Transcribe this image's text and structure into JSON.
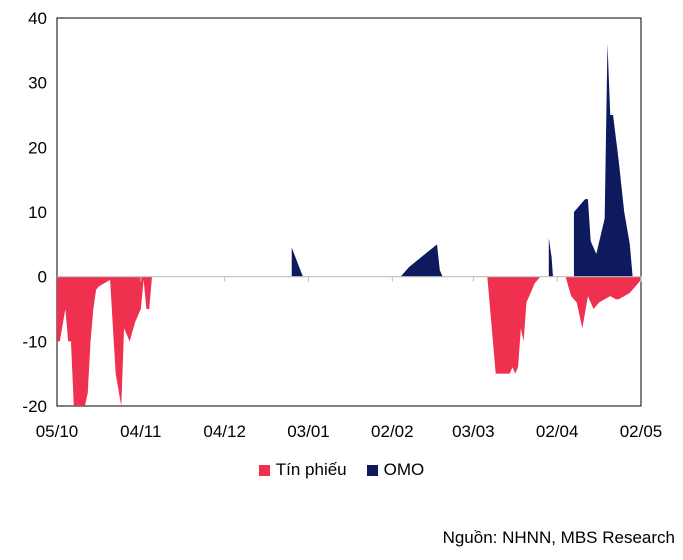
{
  "chart_data": {
    "type": "area",
    "title": "",
    "xlabel": "",
    "ylabel": "",
    "ylim": [
      -20,
      40
    ],
    "yticks": [
      -20,
      -10,
      0,
      10,
      20,
      30,
      40
    ],
    "x_ticks": [
      {
        "label": "05/10",
        "x": 0
      },
      {
        "label": "04/11",
        "x": 30
      },
      {
        "label": "04/12",
        "x": 60
      },
      {
        "label": "03/01",
        "x": 90
      },
      {
        "label": "02/02",
        "x": 120
      },
      {
        "label": "03/03",
        "x": 149
      },
      {
        "label": "02/04",
        "x": 179
      },
      {
        "label": "02/05",
        "x": 209
      }
    ],
    "xlim": [
      0,
      209
    ],
    "series": [
      {
        "name": "Tín phiếu",
        "color": "#f0304f",
        "points": [
          [
            0,
            0
          ],
          [
            0,
            -10
          ],
          [
            1,
            -10
          ],
          [
            3,
            -5
          ],
          [
            4,
            -10
          ],
          [
            5,
            -10
          ],
          [
            6,
            -20
          ],
          [
            10,
            -20
          ],
          [
            11,
            -18
          ],
          [
            12,
            -10
          ],
          [
            13,
            -5
          ],
          [
            14,
            -2
          ],
          [
            15,
            -1.5
          ],
          [
            17,
            -1
          ],
          [
            19,
            -0.5
          ],
          [
            21,
            -15
          ],
          [
            23,
            -20
          ],
          [
            24,
            -8
          ],
          [
            26,
            -10
          ],
          [
            28,
            -7
          ],
          [
            30,
            -5
          ],
          [
            31,
            -0.5
          ],
          [
            32,
            -5
          ],
          [
            33,
            -5
          ],
          [
            34,
            0
          ],
          [
            154,
            0
          ],
          [
            155,
            -5
          ],
          [
            157,
            -15
          ],
          [
            162,
            -15
          ],
          [
            163,
            -14
          ],
          [
            164,
            -15
          ],
          [
            165,
            -14
          ],
          [
            166,
            -8
          ],
          [
            167,
            -10
          ],
          [
            168,
            -4
          ],
          [
            169,
            -3
          ],
          [
            171,
            -1
          ],
          [
            172,
            -0.5
          ],
          [
            173,
            0
          ],
          [
            182,
            0
          ],
          [
            184,
            -3
          ],
          [
            186,
            -4
          ],
          [
            188,
            -8
          ],
          [
            190,
            -3
          ],
          [
            192,
            -5
          ],
          [
            194,
            -4
          ],
          [
            196,
            -3.5
          ],
          [
            198,
            -3
          ],
          [
            200,
            -3.5
          ],
          [
            201,
            -3.5
          ],
          [
            203,
            -3
          ],
          [
            205,
            -2.5
          ],
          [
            206,
            -2
          ],
          [
            209,
            -0.5
          ],
          [
            209,
            0
          ]
        ]
      },
      {
        "name": "OMO",
        "color": "#0d1b5e",
        "points": [
          [
            0,
            0
          ],
          [
            84,
            0
          ],
          [
            84,
            4.5
          ],
          [
            88,
            0
          ],
          [
            123,
            0
          ],
          [
            126,
            1.5
          ],
          [
            136,
            5
          ],
          [
            137,
            1
          ],
          [
            138,
            0
          ],
          [
            176,
            0
          ],
          [
            176,
            6
          ],
          [
            177,
            3
          ],
          [
            177.5,
            0
          ],
          [
            185,
            0
          ],
          [
            185,
            10
          ],
          [
            189,
            12
          ],
          [
            190,
            12
          ],
          [
            191,
            5.5
          ],
          [
            193,
            3.5
          ],
          [
            196,
            9
          ],
          [
            197,
            36
          ],
          [
            198,
            25
          ],
          [
            199,
            25
          ],
          [
            201,
            18
          ],
          [
            203,
            10
          ],
          [
            205,
            5
          ],
          [
            206,
            0
          ],
          [
            209,
            0
          ]
        ]
      }
    ]
  },
  "source": "Nguồn: NHNN, MBS Research"
}
